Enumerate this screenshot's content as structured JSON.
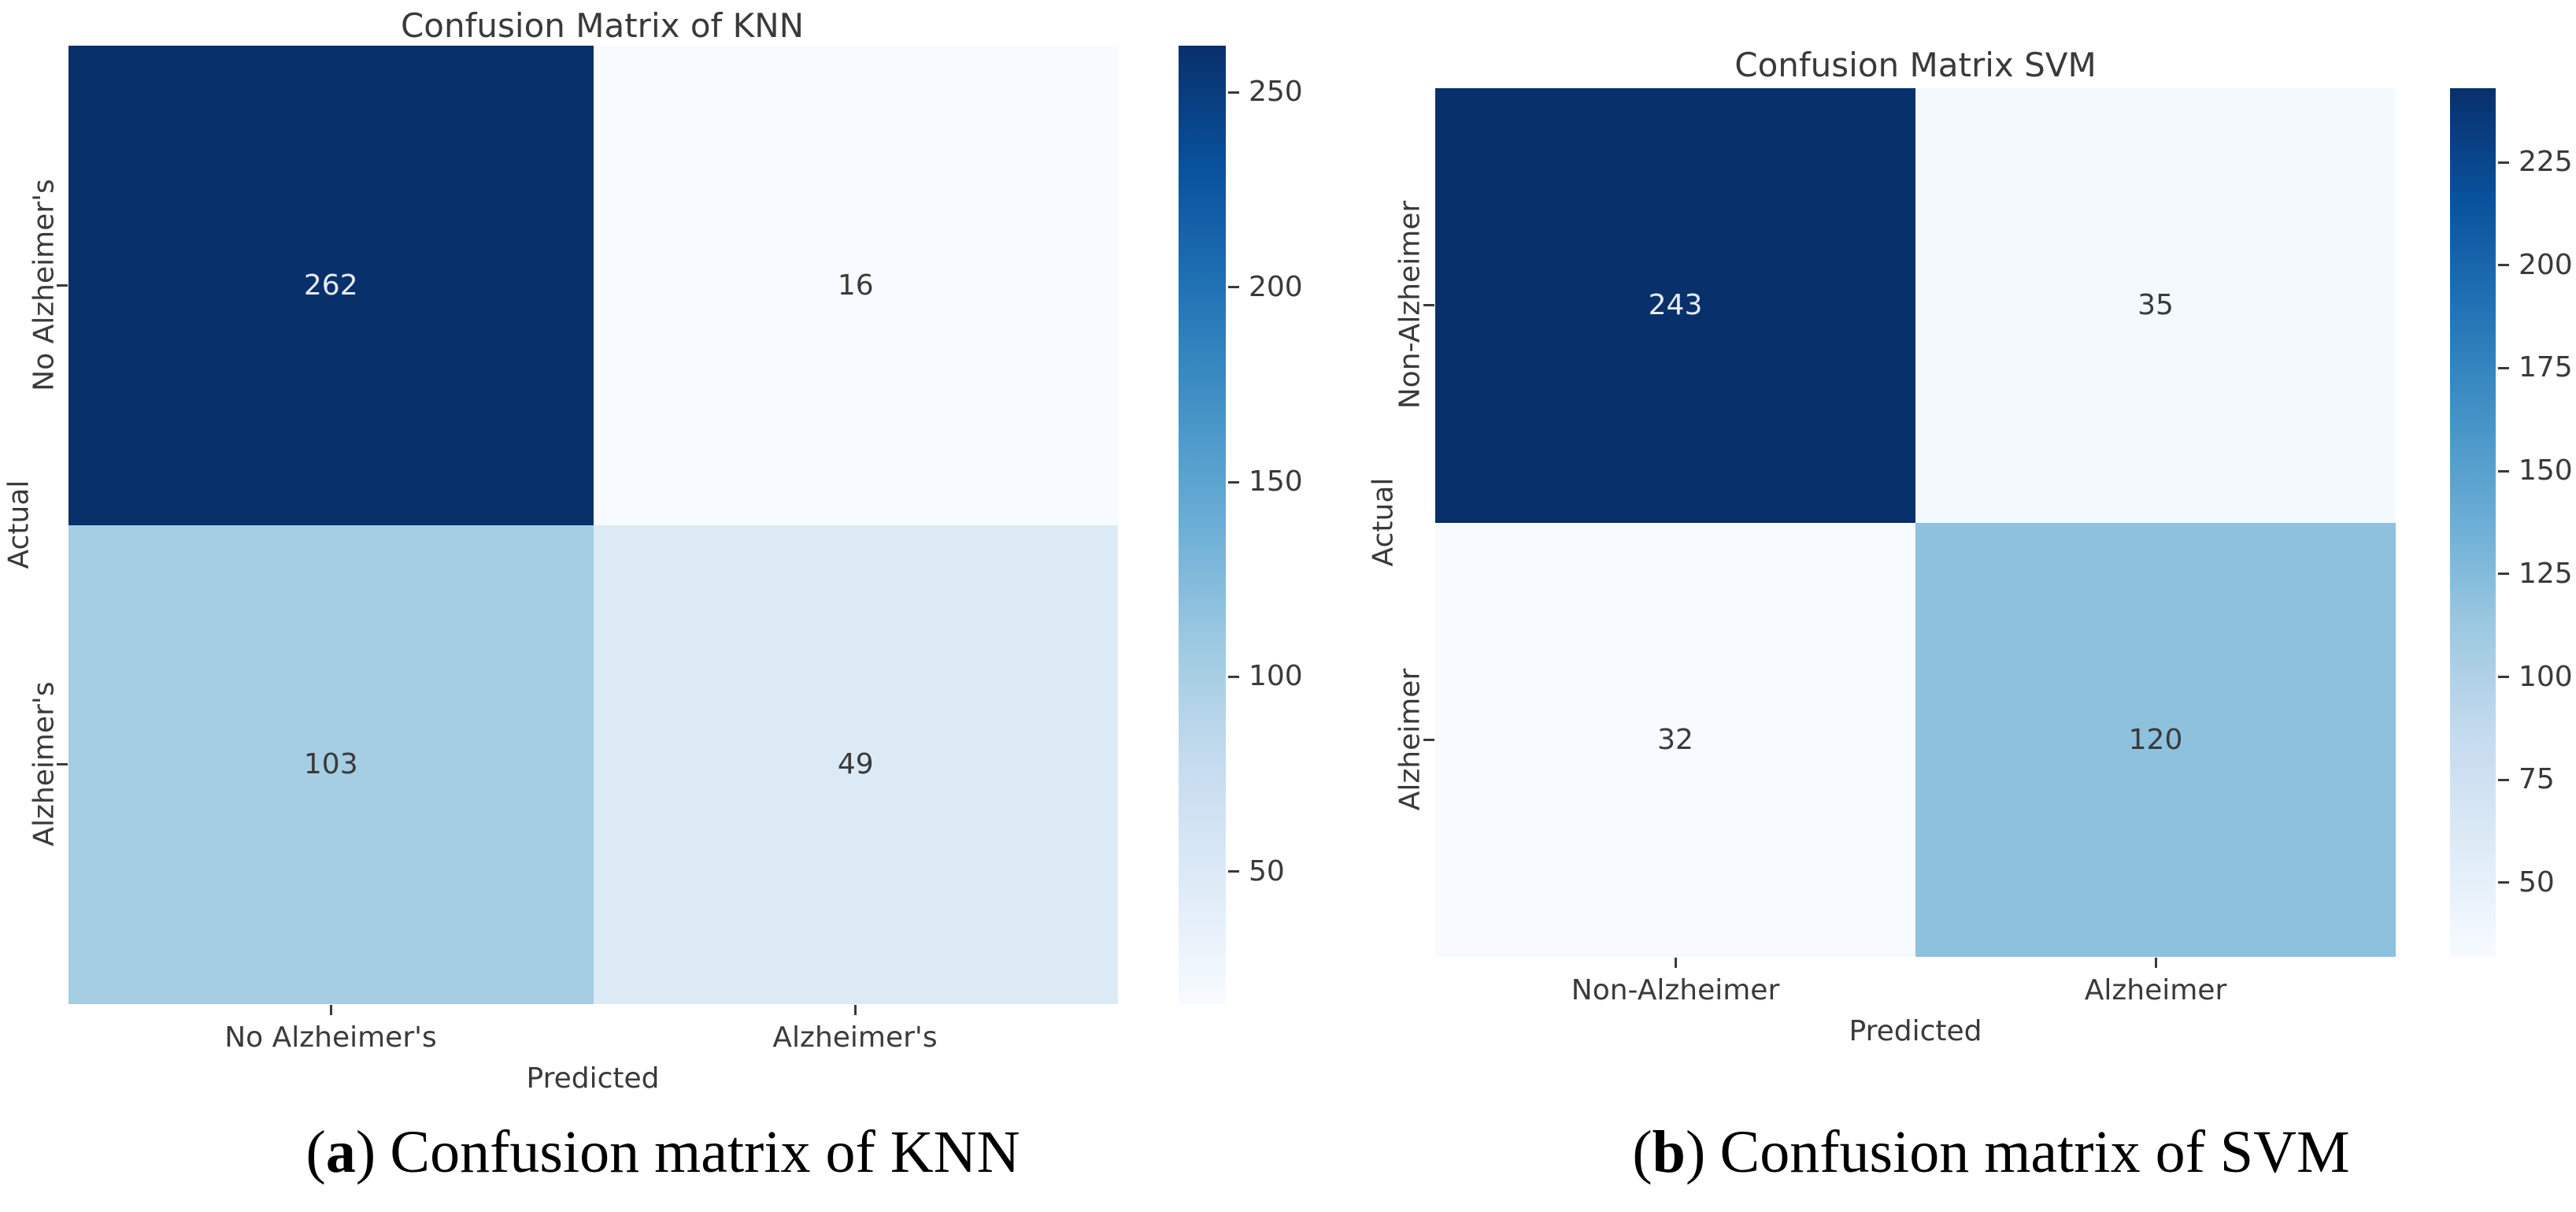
{
  "chart_data": [
    {
      "type": "heatmap",
      "title": "Confusion Matrix of KNN",
      "xlabel": "Predicted",
      "ylabel": "Actual",
      "x_categories": [
        "No Alzheimer's",
        "Alzheimer's"
      ],
      "y_categories": [
        "No Alzheimer's",
        "Alzheimer's"
      ],
      "matrix": [
        [
          262,
          16
        ],
        [
          103,
          49
        ]
      ],
      "colormap": "Blues",
      "value_range": [
        16,
        262
      ],
      "colorbar_ticks": [
        250,
        200,
        150,
        100,
        50
      ],
      "legend_position": "right",
      "caption": {
        "open": "(",
        "letter": "a",
        "close": ")",
        "text": "Confusion matrix of KNN"
      }
    },
    {
      "type": "heatmap",
      "title": "Confusion Matrix SVM",
      "xlabel": "Predicted",
      "ylabel": "Actual",
      "x_categories": [
        "Non-Alzheimer",
        "Alzheimer"
      ],
      "y_categories": [
        "Non-Alzheimer",
        "Alzheimer"
      ],
      "matrix": [
        [
          243,
          35
        ],
        [
          32,
          120
        ]
      ],
      "colormap": "Blues",
      "value_range": [
        32,
        243
      ],
      "colorbar_ticks": [
        225,
        200,
        175,
        150,
        125,
        100,
        75,
        50
      ],
      "legend_position": "right",
      "caption": {
        "open": "(",
        "letter": "b",
        "close": ")",
        "text": "Confusion matrix of SVM"
      }
    }
  ],
  "colors": {
    "colormap_dark_end": "#08306b",
    "colormap_light_end": "#f7fbff",
    "plot_text": "#3a3a3a",
    "caption_text": "#000000"
  }
}
